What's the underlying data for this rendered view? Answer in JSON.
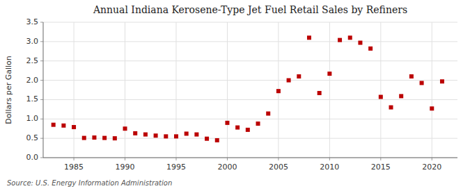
{
  "chart_data": {
    "type": "scatter",
    "title": "Annual Indiana Kerosene-Type Jet Fuel Retail Sales by Refiners",
    "ylabel": "Dollars per Gallon",
    "annotations": [
      "Source: U.S. Energy Information Administration"
    ],
    "x": [
      1983,
      1984,
      1985,
      1986,
      1987,
      1988,
      1989,
      1990,
      1991,
      1992,
      1993,
      1994,
      1995,
      1996,
      1997,
      1998,
      1999,
      2000,
      2001,
      2002,
      2003,
      2004,
      2005,
      2006,
      2007,
      2008,
      2009,
      2010,
      2011,
      2012,
      2013,
      2014,
      2015,
      2016,
      2017,
      2018,
      2019,
      2020,
      2021
    ],
    "values": [
      0.85,
      0.83,
      0.79,
      0.51,
      0.52,
      0.51,
      0.5,
      0.75,
      0.63,
      0.6,
      0.57,
      0.55,
      0.55,
      0.62,
      0.6,
      0.49,
      0.45,
      0.9,
      0.78,
      0.72,
      0.88,
      1.14,
      1.72,
      2.0,
      2.1,
      3.1,
      1.67,
      2.17,
      3.04,
      3.1,
      2.97,
      2.82,
      1.57,
      1.3,
      1.59,
      2.1,
      1.93,
      1.27,
      1.97
    ],
    "color": "#bb0000",
    "marker": "square",
    "xlim": [
      1982,
      2022.5
    ],
    "ylim": [
      0.0,
      3.5
    ],
    "xticks": [
      1985,
      1990,
      1995,
      2000,
      2005,
      2010,
      2015,
      2020
    ],
    "yticks": [
      {
        "value": 0.0,
        "label": "0.0"
      },
      0.5,
      {
        "value": 1.0,
        "label": "1.0"
      },
      1.5,
      {
        "value": 2.0,
        "label": "2.0"
      },
      2.5,
      {
        "value": 3.0,
        "label": "3.0"
      },
      3.5
    ],
    "grid": true
  }
}
